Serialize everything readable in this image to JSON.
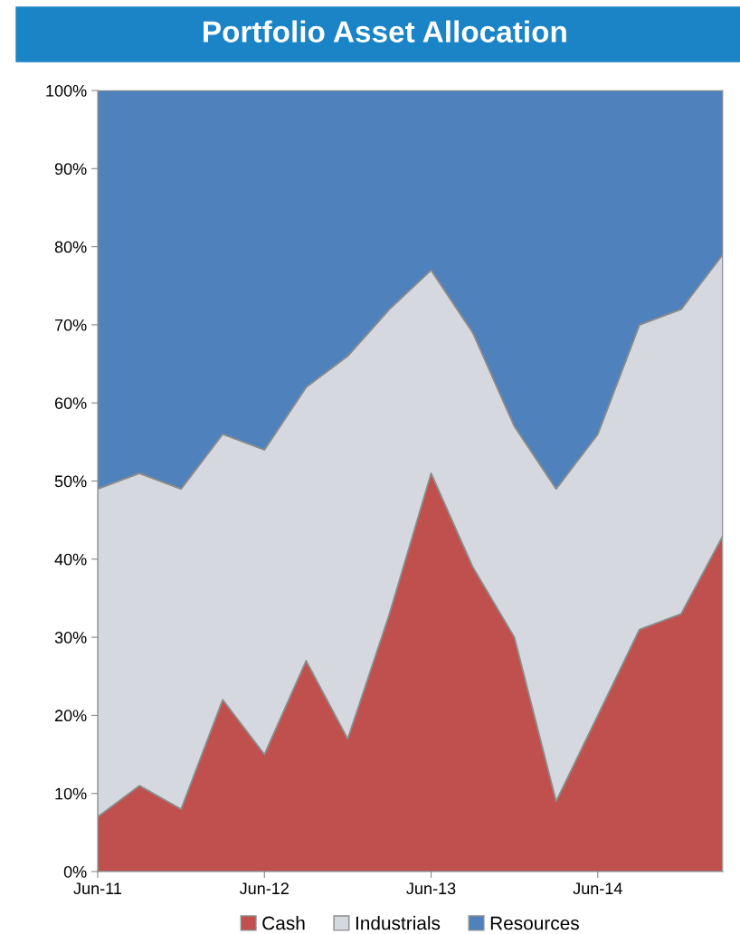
{
  "chart_data": {
    "type": "area",
    "title": "Portfolio Asset Allocation",
    "stacked": true,
    "x": [
      "2011-06",
      "2011-09",
      "2011-12",
      "2012-03",
      "2012-06",
      "2012-09",
      "2012-12",
      "2013-03",
      "2013-06",
      "2013-09",
      "2013-12",
      "2014-03",
      "2014-06",
      "2014-09",
      "2014-12",
      "2015-03"
    ],
    "series": [
      {
        "name": "Cash",
        "color": "#c0504d",
        "values": [
          7,
          11,
          8,
          22,
          15,
          27,
          17,
          33,
          51,
          39,
          30,
          9,
          20,
          31,
          33,
          43
        ]
      },
      {
        "name": "Industrials",
        "color": "#d5d8de",
        "values": [
          42,
          40,
          41,
          34,
          39,
          35,
          49,
          39,
          26,
          30,
          27,
          40,
          36,
          39,
          39,
          36
        ]
      },
      {
        "name": "Resources",
        "color": "#4f81bd",
        "values": [
          51,
          49,
          51,
          44,
          46,
          38,
          34,
          28,
          23,
          31,
          43,
          51,
          44,
          30,
          28,
          21
        ]
      }
    ],
    "xlim": [
      "2011-06",
      "2015-03"
    ],
    "xticks": [
      {
        "value": "2011-06",
        "label": "Jun-11"
      },
      {
        "value": "2012-06",
        "label": "Jun-12"
      },
      {
        "value": "2013-06",
        "label": "Jun-13"
      },
      {
        "value": "2014-06",
        "label": "Jun-14"
      }
    ],
    "ylim": [
      0,
      100
    ],
    "yticks": [
      {
        "value": 0,
        "label": "0%"
      },
      {
        "value": 10,
        "label": "10%"
      },
      {
        "value": 20,
        "label": "20%"
      },
      {
        "value": 30,
        "label": "30%"
      },
      {
        "value": 40,
        "label": "40%"
      },
      {
        "value": 50,
        "label": "50%"
      },
      {
        "value": 60,
        "label": "60%"
      },
      {
        "value": 70,
        "label": "70%"
      },
      {
        "value": 80,
        "label": "80%"
      },
      {
        "value": 90,
        "label": "90%"
      },
      {
        "value": 100,
        "label": "100%"
      }
    ],
    "legend": "bottom"
  }
}
